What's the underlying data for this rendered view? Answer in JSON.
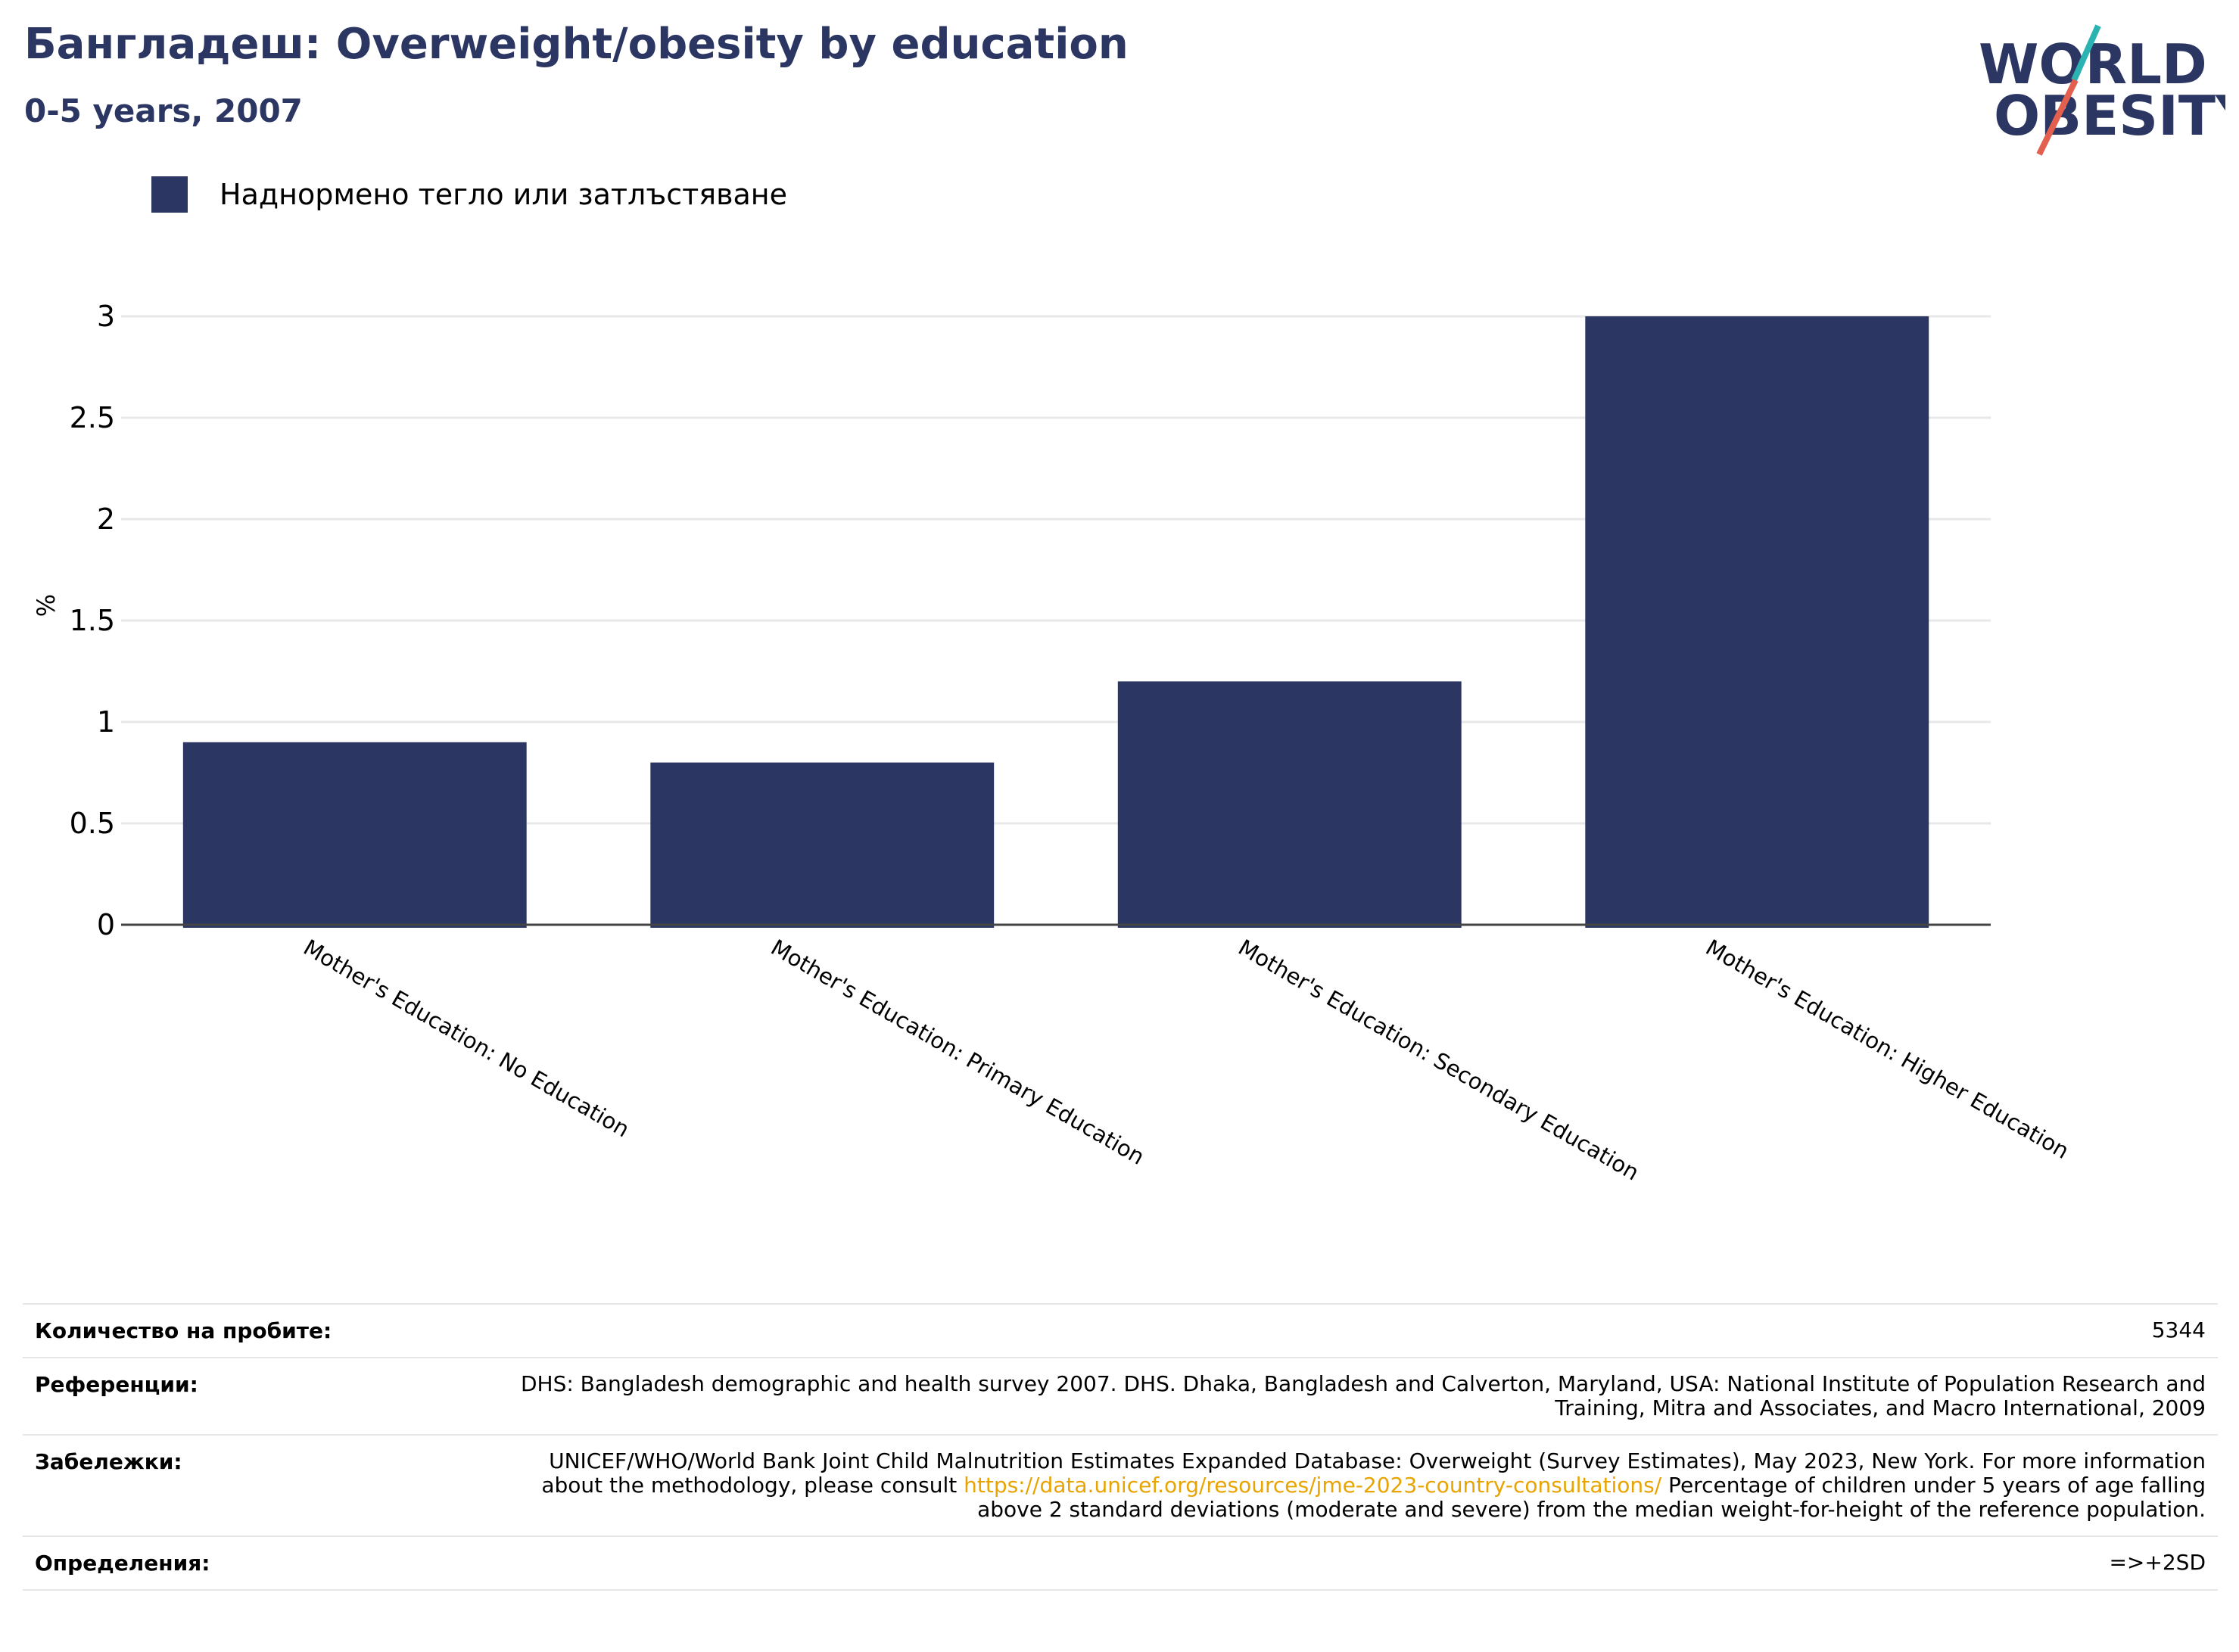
{
  "header": {
    "title": "Бангладеш: Overweight/obesity by education",
    "subtitle": "0-5 years, 2007"
  },
  "logo": {
    "line1": "WORLD",
    "line2": "OBESITY",
    "colors": {
      "text": "#2b3663",
      "slash_teal": "#2ab3b1",
      "slash_red": "#e4604e"
    }
  },
  "legend": {
    "label": "Наднормено тегло или затлъстяване",
    "color": "#2b3663"
  },
  "chart_data": {
    "type": "bar",
    "categories": [
      "Mother's Education: No Education",
      "Mother's Education: Primary Education",
      "Mother's Education: Secondary Education",
      "Mother's Education: Higher Education"
    ],
    "series": [
      {
        "name": "Наднормено тегло или затлъстяване",
        "values": [
          0.9,
          0.8,
          1.2,
          3.0
        ],
        "color": "#2b3663"
      }
    ],
    "ylabel": "%",
    "xlabel": "",
    "ylim": [
      0,
      3
    ],
    "yticks": [
      0,
      0.5,
      1,
      1.5,
      2,
      2.5,
      3
    ],
    "ytick_labels": [
      "0",
      "0.5",
      "1",
      "1.5",
      "2",
      "2.5",
      "3"
    ],
    "grid": true,
    "legend_position": "top-left"
  },
  "info": {
    "rows": [
      {
        "key": "Количество на пробите:",
        "value": "5344"
      },
      {
        "key": "Референции:",
        "value": "DHS: Bangladesh demographic and health survey 2007. DHS. Dhaka, Bangladesh and Calverton, Maryland, USA: National Institute of Population Research and Training, Mitra and Associates, and Macro International, 2009"
      },
      {
        "key": "Забележки:",
        "value_before": "UNICEF/WHO/World Bank Joint Child Malnutrition Estimates Expanded Database: Overweight (Survey Estimates), May 2023, New York. For more information about the methodology, please consult ",
        "link": "https://data.unicef.org/resources/jme-2023-country-consultations/",
        "value_after": " Percentage of children under 5 years of age falling above 2 standard deviations (moderate and severe) from the median weight-for-height of the reference population."
      },
      {
        "key": "Определения:",
        "value": "=>+2SD"
      }
    ]
  }
}
